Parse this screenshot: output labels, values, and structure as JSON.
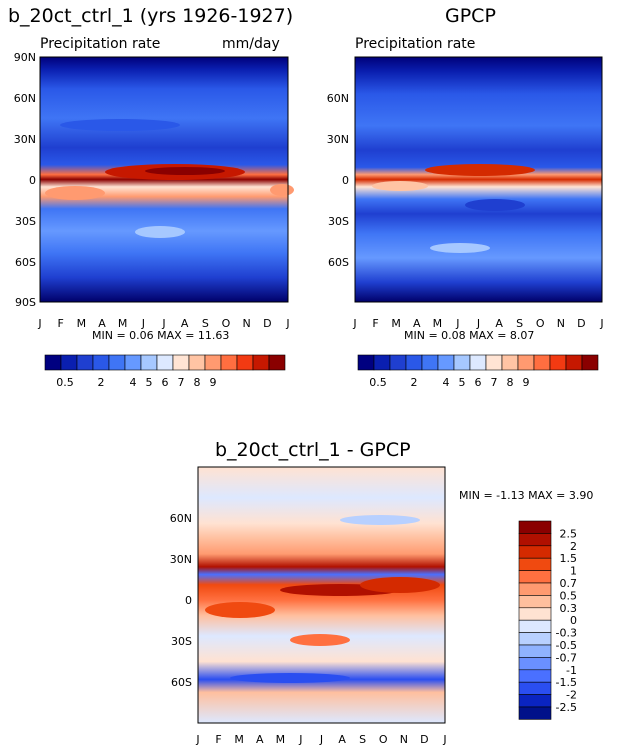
{
  "chart_data": [
    {
      "type": "heatmap",
      "title": "b_20ct_ctrl_1 (yrs 1926-1927)",
      "subtitle_left": "Precipitation rate",
      "units": "mm/day",
      "x_ticks": [
        "J",
        "F",
        "M",
        "A",
        "M",
        "J",
        "J",
        "A",
        "S",
        "O",
        "N",
        "D",
        "J"
      ],
      "y_ticks": [
        "90N",
        "60N",
        "30N",
        "0",
        "30S",
        "60S",
        "90S"
      ],
      "stats": "MIN =   0.06 MAX =  11.63",
      "colorbar": [
        "0.5",
        "2",
        "4",
        "5",
        "6",
        "7",
        "8",
        "9"
      ],
      "colors": [
        "#000080",
        "#0a1fb0",
        "#1f3fd0",
        "#2a58e8",
        "#3f75f5",
        "#6699ff",
        "#a6c8ff",
        "#dde9ff",
        "#ffe4d4",
        "#ffc4a4",
        "#ff9a70",
        "#ff6e40",
        "#f23a12",
        "#c61800",
        "#8a0000"
      ]
    },
    {
      "type": "heatmap",
      "title": "GPCP",
      "subtitle_left": "Precipitation rate",
      "x_ticks": [
        "J",
        "F",
        "M",
        "A",
        "M",
        "J",
        "J",
        "A",
        "S",
        "O",
        "N",
        "D",
        "J"
      ],
      "y_ticks": [
        "60N",
        "30N",
        "0",
        "30S",
        "60S"
      ],
      "stats": "MIN =   0.08 MAX =    8.07",
      "colorbar": [
        "0.5",
        "2",
        "4",
        "5",
        "6",
        "7",
        "8",
        "9"
      ]
    },
    {
      "type": "heatmap",
      "title": "b_20ct_ctrl_1 - GPCP",
      "x_ticks": [
        "J",
        "F",
        "M",
        "A",
        "M",
        "J",
        "J",
        "A",
        "S",
        "O",
        "N",
        "D",
        "J"
      ],
      "y_ticks": [
        "60N",
        "30N",
        "0",
        "30S",
        "60S"
      ],
      "stats": "MIN =  -1.13 MAX =    3.90",
      "colorbar": [
        "2.5",
        "2",
        "1.5",
        "1",
        "0.7",
        "0.5",
        "0.3",
        "0",
        "-0.3",
        "-0.5",
        "-0.7",
        "-1",
        "-1.5",
        "-2",
        "-2.5"
      ],
      "colors": [
        "#8a0000",
        "#b01000",
        "#d42a00",
        "#f04a10",
        "#ff7040",
        "#ff9a70",
        "#ffbf9e",
        "#ffe2d2",
        "#dde8ff",
        "#b8d0ff",
        "#8fb2ff",
        "#6a90ff",
        "#4a70ff",
        "#2a4ef0",
        "#0a24c0",
        "#00118a"
      ]
    }
  ]
}
